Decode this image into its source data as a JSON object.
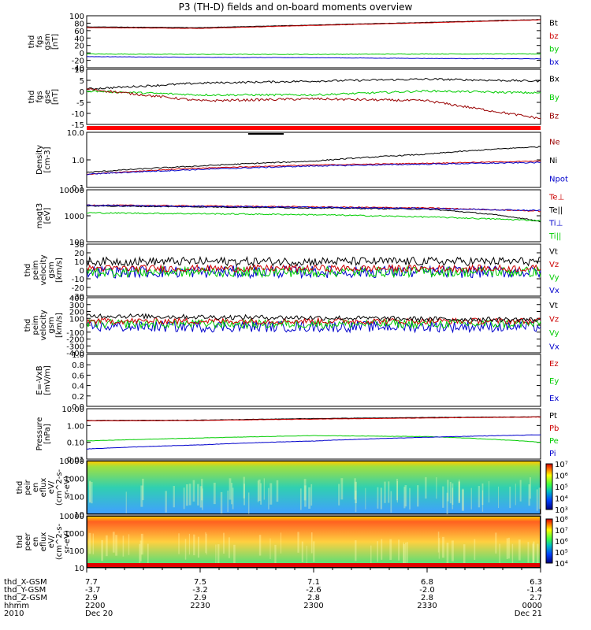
{
  "title": "P3 (TH-D) fields and on-board moments overview",
  "panels": [
    {
      "id": "fgs-gsm",
      "ylabel": [
        "thd",
        "fgs",
        "gsm",
        "[nT]"
      ],
      "ticks": [
        "100",
        "80",
        "60",
        "40",
        "20",
        "0",
        "-20",
        "-40"
      ],
      "legend": [
        {
          "label": "Bt",
          "color": "#000000"
        },
        {
          "label": "bz",
          "color": "#cc0000"
        },
        {
          "label": "by",
          "color": "#00cc00"
        },
        {
          "label": "bx",
          "color": "#0000cc"
        }
      ]
    },
    {
      "id": "fgs-gse",
      "ylabel": [
        "thd",
        "fgs",
        "gse",
        "[nT]"
      ],
      "ticks": [
        "10",
        "5",
        "0",
        "-5",
        "-10",
        "-15"
      ],
      "legend": [
        {
          "label": "Bx",
          "color": "#000000"
        },
        {
          "label": "By",
          "color": "#00cc00"
        },
        {
          "label": "Bz",
          "color": "#990000"
        }
      ]
    },
    {
      "id": "density",
      "ylabel": [
        "Density",
        "[cm-3]"
      ],
      "ticks": [
        "10.0",
        "1.0",
        "0.1"
      ],
      "legend": [
        {
          "label": "Ne",
          "color": "#990000"
        },
        {
          "label": "Ni",
          "color": "#000000"
        },
        {
          "label": "Npot",
          "color": "#0000cc"
        }
      ]
    },
    {
      "id": "temperature",
      "ylabel": [
        "magt3",
        "[eV]"
      ],
      "ticks": [
        "10000",
        "1000",
        "100"
      ],
      "legend": [
        {
          "label": "Te⊥",
          "color": "#cc0000"
        },
        {
          "label": "Te||",
          "color": "#000000"
        },
        {
          "label": "Ti⊥",
          "color": "#0000cc"
        },
        {
          "label": "Ti||",
          "color": "#00cc00"
        }
      ]
    },
    {
      "id": "peem-velocity",
      "ylabel": [
        "thd",
        "peim",
        "velocity",
        "gsm",
        "[km/s]"
      ],
      "ticks": [
        "30",
        "20",
        "10",
        "0",
        "-10",
        "-20",
        "-30"
      ],
      "legend": [
        {
          "label": "Vt",
          "color": "#000000"
        },
        {
          "label": "Vz",
          "color": "#cc0000"
        },
        {
          "label": "Vy",
          "color": "#00cc00"
        },
        {
          "label": "Vx",
          "color": "#0000cc"
        }
      ]
    },
    {
      "id": "peim-velocity",
      "ylabel": [
        "thd",
        "peim",
        "velocity",
        "gsm",
        "[km/s]"
      ],
      "ticks": [
        "400",
        "300",
        "200",
        "100",
        "0",
        "-100",
        "-200",
        "-300",
        "-400"
      ],
      "legend": [
        {
          "label": "Vt",
          "color": "#000000"
        },
        {
          "label": "Vz",
          "color": "#cc0000"
        },
        {
          "label": "Vy",
          "color": "#00cc00"
        },
        {
          "label": "Vx",
          "color": "#0000cc"
        }
      ]
    },
    {
      "id": "efield",
      "ylabel": [
        "E=-VxB",
        "[mV/m]"
      ],
      "ticks": [
        "1.0",
        "0.8",
        "0.6",
        "0.4",
        "0.2",
        "0.0"
      ],
      "legend": [
        {
          "label": "Ez",
          "color": "#cc0000"
        },
        {
          "label": "Ey",
          "color": "#00cc00"
        },
        {
          "label": "Ex",
          "color": "#0000cc"
        }
      ]
    },
    {
      "id": "pressure",
      "ylabel": [
        "Pressure",
        "[nPa]"
      ],
      "ticks": [
        "10.00",
        "1.00",
        "0.10",
        "0.01"
      ],
      "legend": [
        {
          "label": "Pt",
          "color": "#000000"
        },
        {
          "label": "Pb",
          "color": "#cc0000"
        },
        {
          "label": "Pe",
          "color": "#00cc00"
        },
        {
          "label": "Pi",
          "color": "#0000cc"
        }
      ]
    },
    {
      "id": "peir-spec",
      "ylabel": [
        "thd",
        "peir",
        "en",
        "eflux",
        "eV/",
        "(cm^2-s-",
        "sr-eV)"
      ],
      "ticks": [
        "10000",
        "1000",
        "100",
        "10"
      ],
      "colorbar": [
        "10⁷",
        "10⁶",
        "10⁵",
        "10⁴",
        "10³"
      ]
    },
    {
      "id": "peer-spec",
      "ylabel": [
        "thd",
        "peer",
        "en",
        "eflux",
        "eV/",
        "(cm^2-s-",
        "sr-eV)"
      ],
      "ticks": [
        "10000",
        "1000",
        "100",
        "10"
      ],
      "colorbar": [
        "10⁸",
        "10⁷",
        "10⁶",
        "10⁵",
        "10⁴"
      ]
    }
  ],
  "xaxis": {
    "labels": [
      "thd_X-GSM",
      "thd_Y-GSM",
      "thd_Z-GSM",
      "hhmm",
      "2010"
    ],
    "columns": [
      [
        "7.7",
        "-3.7",
        "2.9",
        "2200",
        "Dec 20"
      ],
      [
        "7.5",
        "-3.2",
        "2.9",
        "2230",
        ""
      ],
      [
        "7.1",
        "-2.6",
        "2.8",
        "2300",
        ""
      ],
      [
        "6.8",
        "-2.0",
        "2.8",
        "2330",
        ""
      ],
      [
        "6.3",
        "-1.4",
        "2.7",
        "0000",
        "Dec 21"
      ]
    ]
  },
  "chart_data": {
    "type": "line",
    "title": "P3 (TH-D) fields and on-board moments overview",
    "x": [
      "2200",
      "2230",
      "2300",
      "2330",
      "0000"
    ],
    "series": [
      {
        "name": "Bt",
        "panel": "fgs-gsm",
        "values": [
          70,
          68,
          75,
          82,
          90
        ]
      },
      {
        "name": "bz",
        "panel": "fgs-gsm",
        "values": [
          68,
          66,
          74,
          81,
          89
        ]
      },
      {
        "name": "by",
        "panel": "fgs-gsm",
        "values": [
          -3,
          -4,
          -4,
          -3,
          -3
        ]
      },
      {
        "name": "bx",
        "panel": "fgs-gsm",
        "values": [
          -10,
          -12,
          -13,
          -15,
          -16
        ]
      },
      {
        "name": "Bx",
        "panel": "fgs-gse",
        "values": [
          0,
          3,
          4,
          5,
          4
        ]
      },
      {
        "name": "By",
        "panel": "fgs-gse",
        "values": [
          -1,
          -3,
          -3,
          -1,
          -2
        ]
      },
      {
        "name": "Bz",
        "panel": "fgs-gse",
        "values": [
          0,
          -6,
          -5,
          -6,
          -15
        ]
      },
      {
        "name": "Ni",
        "panel": "density",
        "values": [
          0.35,
          0.6,
          0.9,
          1.6,
          3.0
        ]
      },
      {
        "name": "Ne",
        "panel": "density",
        "values": [
          0.3,
          0.5,
          0.65,
          0.75,
          0.9
        ]
      },
      {
        "name": "Npot",
        "panel": "density",
        "values": [
          0.3,
          0.45,
          0.6,
          0.7,
          0.8
        ]
      },
      {
        "name": "Te⊥",
        "panel": "temperature",
        "values": [
          2600,
          2400,
          2200,
          2000,
          1500
        ]
      },
      {
        "name": "Te||",
        "panel": "temperature",
        "values": [
          2400,
          2200,
          2000,
          1800,
          600
        ]
      },
      {
        "name": "Ti⊥",
        "panel": "temperature",
        "values": [
          2500,
          2300,
          2100,
          1900,
          1600
        ]
      },
      {
        "name": "Ti||",
        "panel": "temperature",
        "values": [
          1300,
          1200,
          1100,
          900,
          650
        ]
      },
      {
        "name": "Pt",
        "panel": "pressure",
        "values": [
          2.0,
          2.1,
          2.6,
          3.0,
          3.3
        ]
      },
      {
        "name": "Pb",
        "panel": "pressure",
        "values": [
          1.9,
          2.0,
          2.4,
          2.8,
          3.2
        ]
      },
      {
        "name": "Pe",
        "panel": "pressure",
        "values": [
          0.12,
          0.18,
          0.25,
          0.22,
          0.1
        ]
      },
      {
        "name": "Pi",
        "panel": "pressure",
        "values": [
          0.04,
          0.07,
          0.12,
          0.2,
          0.28
        ]
      }
    ]
  }
}
